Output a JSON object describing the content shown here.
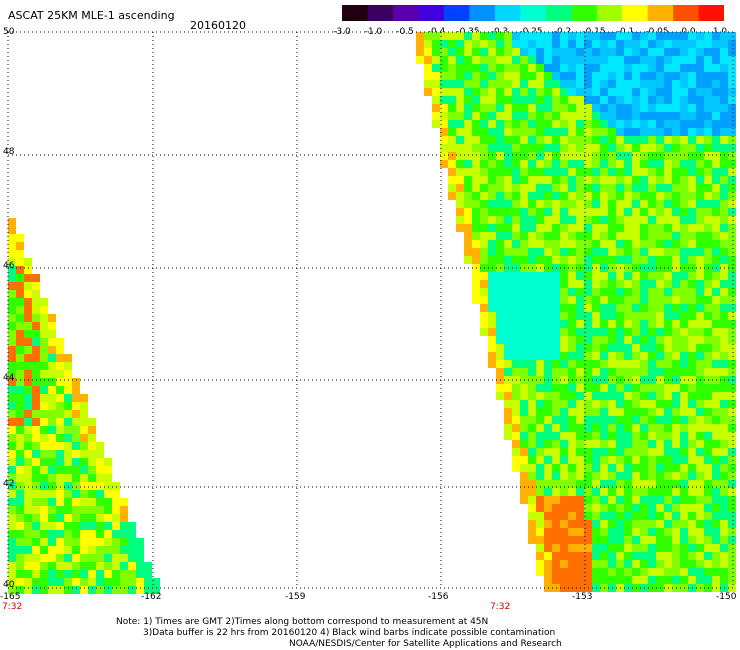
{
  "header": {
    "title": "ASCAT 25KM MLE-1 ascending",
    "date": "20160120"
  },
  "colorbar": {
    "tick_labels": [
      "-3.0",
      "-1.0",
      "-0.5",
      "-0.4",
      "-0.35",
      "-0.3",
      "-0.25",
      "-0.2",
      "-0.15",
      "-0.1",
      "-0.05",
      "0.0",
      "1.0"
    ],
    "colors": [
      "#200010",
      "#3a0060",
      "#5800b0",
      "#4000e0",
      "#0040ff",
      "#0090ff",
      "#00d8ff",
      "#00ffd0",
      "#00ff80",
      "#30ff00",
      "#a0ff00",
      "#ffff00",
      "#ffb000",
      "#ff5000",
      "#ff1000"
    ]
  },
  "map": {
    "lat_labels": [
      "50",
      "48",
      "46",
      "44",
      "42",
      "40"
    ],
    "lon_labels": [
      "-165",
      "-162",
      "-159",
      "-156",
      "-153",
      "-150"
    ],
    "time_labels": [
      "7:32",
      "7:32"
    ]
  },
  "footer": {
    "note_line1": "Note: 1) Times are GMT 2)Times along bottom correspond to measurement at 45N",
    "note_line2": "3)Data buffer is 22 hrs from 20160120 4) Black wind barbs indicate possible contamination",
    "note_line3": "NOAA/NESDIS/Center for Satellite Applications and Research"
  }
}
